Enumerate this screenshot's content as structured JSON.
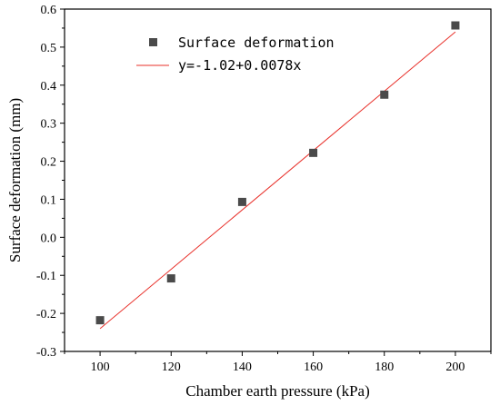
{
  "chart_data": {
    "type": "scatter",
    "title": "",
    "xlabel": "Chamber earth pressure (kPa)",
    "ylabel": "Surface deformation (mm)",
    "xlim": [
      90,
      210
    ],
    "ylim": [
      -0.3,
      0.6
    ],
    "xticks": [
      100,
      120,
      140,
      160,
      180,
      200
    ],
    "xtick_labels": [
      "100",
      "120",
      "140",
      "160",
      "180",
      "200"
    ],
    "yticks": [
      -0.3,
      -0.2,
      -0.1,
      0.0,
      0.1,
      0.2,
      0.3,
      0.4,
      0.5,
      0.6
    ],
    "ytick_labels": [
      "-0.3",
      "-0.2",
      "-0.1",
      "0.0",
      "0.1",
      "0.2",
      "0.3",
      "0.4",
      "0.5",
      "0.6"
    ],
    "grid": false,
    "legend_position": "top-left",
    "series": [
      {
        "name": "Surface deformation",
        "kind": "scatter",
        "marker": "square",
        "color": "#4a4a4a",
        "x": [
          100,
          120,
          140,
          160,
          180,
          200
        ],
        "y": [
          -0.218,
          -0.108,
          0.093,
          0.222,
          0.375,
          0.557
        ]
      },
      {
        "name": "y=-1.02+0.0078x",
        "kind": "fit-line",
        "color": "#e8302a",
        "intercept": -1.02,
        "slope": 0.0078,
        "x_range": [
          100,
          200
        ]
      }
    ]
  }
}
